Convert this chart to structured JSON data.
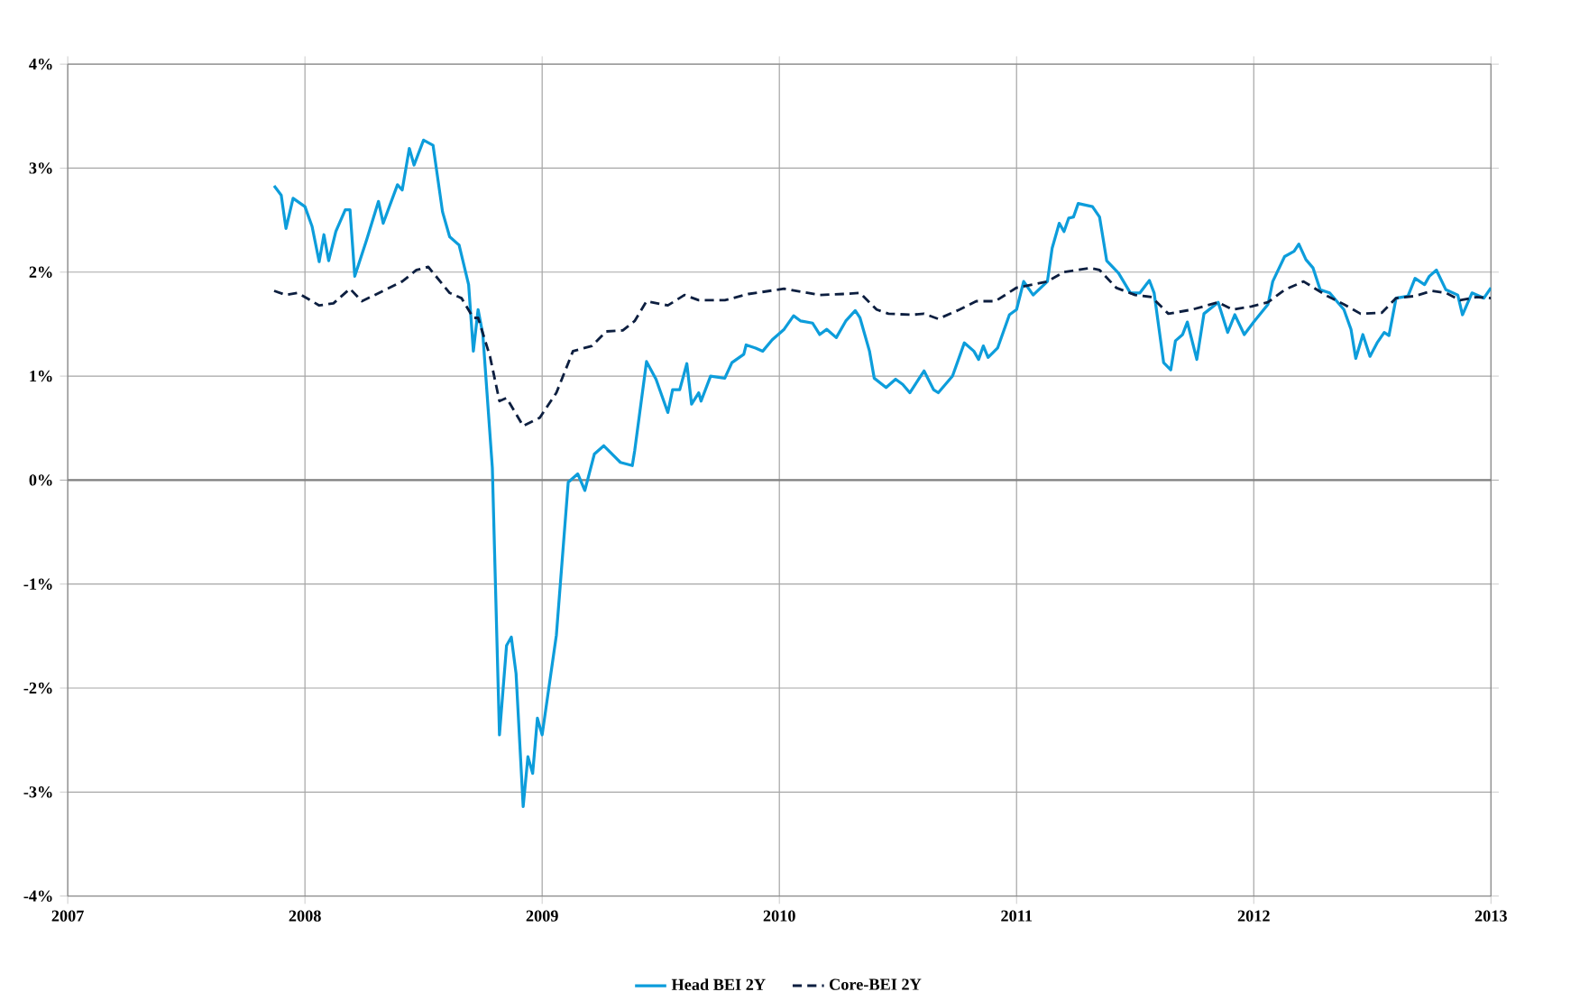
{
  "chart_data": {
    "type": "line",
    "xlim": [
      2007,
      2013
    ],
    "xticks": [
      2007,
      2008,
      2009,
      2010,
      2011,
      2012,
      2013
    ],
    "ylim": [
      -4,
      4
    ],
    "yticks": [
      {
        "value": -4,
        "label": "-4%"
      },
      {
        "value": -3,
        "label": "-3%"
      },
      {
        "value": -2,
        "label": "-2%"
      },
      {
        "value": -1,
        "label": "-1%"
      },
      {
        "value": 0,
        "label": "0%"
      },
      {
        "value": 1,
        "label": "1%"
      },
      {
        "value": 2,
        "label": "2%"
      },
      {
        "value": 3,
        "label": "3%"
      },
      {
        "value": 4,
        "label": "4%"
      }
    ],
    "grid": true,
    "legend": "bottom",
    "marker": "none",
    "series": [
      {
        "name": "Head BEI 2Y",
        "color": "#0d9ddb",
        "line_style": "solid",
        "x": [
          2007.87,
          2007.9,
          2007.92,
          2007.95,
          2008.0,
          2008.03,
          2008.06,
          2008.08,
          2008.1,
          2008.13,
          2008.17,
          2008.19,
          2008.21,
          2008.26,
          2008.31,
          2008.33,
          2008.39,
          2008.41,
          2008.44,
          2008.46,
          2008.5,
          2008.54,
          2008.58,
          2008.61,
          2008.65,
          2008.69,
          2008.71,
          2008.73,
          2008.75,
          2008.79,
          2008.82,
          2008.85,
          2008.87,
          2008.89,
          2008.92,
          2008.94,
          2008.96,
          2008.98,
          2009.0,
          2009.06,
          2009.11,
          2009.15,
          2009.18,
          2009.22,
          2009.26,
          2009.33,
          2009.38,
          2009.39,
          2009.44,
          2009.48,
          2009.53,
          2009.55,
          2009.58,
          2009.61,
          2009.63,
          2009.66,
          2009.67,
          2009.71,
          2009.77,
          2009.8,
          2009.85,
          2009.86,
          2009.9,
          2009.93,
          2009.97,
          2010.02,
          2010.06,
          2010.09,
          2010.14,
          2010.17,
          2010.2,
          2010.24,
          2010.28,
          2010.32,
          2010.34,
          2010.38,
          2010.4,
          2010.45,
          2010.49,
          2010.52,
          2010.55,
          2010.61,
          2010.65,
          2010.67,
          2010.73,
          2010.78,
          2010.82,
          2010.84,
          2010.86,
          2010.88,
          2010.92,
          2010.97,
          2011.0,
          2011.03,
          2011.07,
          2011.13,
          2011.15,
          2011.18,
          2011.2,
          2011.22,
          2011.24,
          2011.26,
          2011.32,
          2011.35,
          2011.38,
          2011.43,
          2011.48,
          2011.52,
          2011.56,
          2011.58,
          2011.62,
          2011.65,
          2011.67,
          2011.7,
          2011.72,
          2011.76,
          2011.79,
          2011.85,
          2011.89,
          2011.92,
          2011.96,
          2012.0,
          2012.06,
          2012.08,
          2012.13,
          2012.17,
          2012.19,
          2012.22,
          2012.25,
          2012.28,
          2012.32,
          2012.38,
          2012.41,
          2012.43,
          2012.46,
          2012.49,
          2012.52,
          2012.55,
          2012.57,
          2012.6,
          2012.65,
          2012.68,
          2012.72,
          2012.74,
          2012.77,
          2012.81,
          2012.86,
          2012.88,
          2012.92,
          2012.97,
          2013.0
        ],
        "values": [
          2.83,
          2.74,
          2.42,
          2.71,
          2.63,
          2.44,
          2.1,
          2.36,
          2.11,
          2.39,
          2.6,
          2.6,
          1.96,
          2.31,
          2.68,
          2.47,
          2.84,
          2.79,
          3.19,
          3.03,
          3.27,
          3.22,
          2.58,
          2.34,
          2.26,
          1.88,
          1.24,
          1.64,
          1.4,
          0.12,
          -2.45,
          -1.59,
          -1.51,
          -1.86,
          -3.14,
          -2.66,
          -2.82,
          -2.29,
          -2.45,
          -1.49,
          -0.02,
          0.06,
          -0.1,
          0.25,
          0.33,
          0.17,
          0.14,
          0.28,
          1.14,
          0.97,
          0.65,
          0.87,
          0.87,
          1.12,
          0.73,
          0.84,
          0.76,
          1.0,
          0.98,
          1.13,
          1.21,
          1.3,
          1.27,
          1.24,
          1.35,
          1.45,
          1.58,
          1.53,
          1.51,
          1.4,
          1.45,
          1.37,
          1.53,
          1.63,
          1.56,
          1.24,
          0.98,
          0.89,
          0.97,
          0.92,
          0.84,
          1.05,
          0.87,
          0.84,
          1.0,
          1.32,
          1.24,
          1.16,
          1.29,
          1.18,
          1.27,
          1.59,
          1.64,
          1.91,
          1.78,
          1.91,
          2.23,
          2.47,
          2.39,
          2.52,
          2.53,
          2.66,
          2.63,
          2.53,
          2.11,
          1.99,
          1.8,
          1.8,
          1.92,
          1.8,
          1.13,
          1.06,
          1.34,
          1.4,
          1.52,
          1.16,
          1.6,
          1.71,
          1.42,
          1.59,
          1.4,
          1.52,
          1.69,
          1.91,
          2.15,
          2.2,
          2.27,
          2.12,
          2.04,
          1.83,
          1.8,
          1.64,
          1.45,
          1.17,
          1.4,
          1.19,
          1.32,
          1.42,
          1.39,
          1.75,
          1.77,
          1.94,
          1.88,
          1.96,
          2.02,
          1.83,
          1.78,
          1.59,
          1.8,
          1.75,
          1.85
        ]
      },
      {
        "name": "Core-BEI 2Y",
        "color": "#0d1f40",
        "line_style": "dashed",
        "x": [
          2007.87,
          2007.92,
          2007.97,
          2008.06,
          2008.12,
          2008.19,
          2008.24,
          2008.33,
          2008.41,
          2008.47,
          2008.52,
          2008.61,
          2008.66,
          2008.71,
          2008.73,
          2008.78,
          2008.82,
          2008.85,
          2008.92,
          2008.99,
          2009.06,
          2009.13,
          2009.21,
          2009.27,
          2009.34,
          2009.39,
          2009.44,
          2009.53,
          2009.6,
          2009.66,
          2009.77,
          2009.87,
          2010.02,
          2010.17,
          2010.27,
          2010.34,
          2010.41,
          2010.46,
          2010.56,
          2010.61,
          2010.67,
          2010.76,
          2010.83,
          2010.91,
          2011.0,
          2011.13,
          2011.2,
          2011.31,
          2011.35,
          2011.42,
          2011.5,
          2011.57,
          2011.64,
          2011.74,
          2011.85,
          2011.91,
          2011.99,
          2012.06,
          2012.13,
          2012.21,
          2012.31,
          2012.38,
          2012.45,
          2012.54,
          2012.6,
          2012.68,
          2012.75,
          2012.81,
          2012.87,
          2012.94,
          2013.0
        ],
        "values": [
          1.82,
          1.78,
          1.8,
          1.68,
          1.7,
          1.84,
          1.72,
          1.82,
          1.91,
          2.02,
          2.05,
          1.8,
          1.75,
          1.56,
          1.56,
          1.19,
          0.76,
          0.79,
          0.52,
          0.6,
          0.84,
          1.24,
          1.29,
          1.43,
          1.44,
          1.53,
          1.72,
          1.68,
          1.78,
          1.73,
          1.73,
          1.79,
          1.84,
          1.78,
          1.79,
          1.8,
          1.64,
          1.6,
          1.59,
          1.6,
          1.55,
          1.64,
          1.72,
          1.72,
          1.85,
          1.91,
          2.0,
          2.04,
          2.02,
          1.85,
          1.78,
          1.76,
          1.6,
          1.64,
          1.71,
          1.64,
          1.67,
          1.71,
          1.83,
          1.91,
          1.77,
          1.69,
          1.6,
          1.61,
          1.75,
          1.77,
          1.82,
          1.8,
          1.73,
          1.76,
          1.75
        ]
      }
    ]
  }
}
